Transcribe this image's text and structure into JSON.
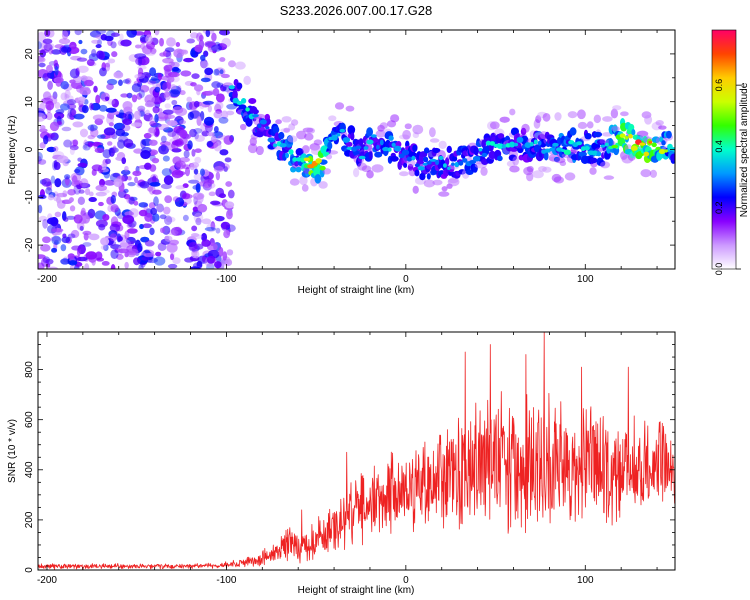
{
  "title": "S233.2026.007.00.17.G28",
  "chart_data": [
    {
      "type": "heatmap",
      "xlabel": "Height of straight line (km)",
      "ylabel": "Frequency (Hz)",
      "xlim": [
        -205,
        150
      ],
      "ylim": [
        -25,
        25
      ],
      "xticks": [
        -200,
        -100,
        0,
        100
      ],
      "xtick_labels": [
        "-200",
        "-100",
        "0",
        "100"
      ],
      "yticks": [
        -20,
        -10,
        0,
        10,
        20
      ],
      "ytick_labels": [
        "-20",
        "-10",
        "0",
        "10",
        "20"
      ],
      "colorbar": {
        "label": "Normalized spectral amplitude",
        "range": [
          0.0,
          0.78
        ],
        "ticks": [
          0.0,
          0.2,
          0.4,
          0.6
        ],
        "tick_labels": [
          "0.0",
          "0.2",
          "0.4",
          "0.6"
        ],
        "colormap": [
          "#ffffff",
          "#cc99ff",
          "#8800ff",
          "#0000ff",
          "#0099ff",
          "#00ffcc",
          "#33ff00",
          "#ccff00",
          "#ffcc00",
          "#ff4400",
          "#ff0066"
        ]
      },
      "noise_region_x": [
        -205,
        -97
      ],
      "ridge": {
        "x": [
          -97,
          -90,
          -82,
          -75,
          -68,
          -60,
          -52,
          -46,
          -42,
          -38,
          -30,
          -24,
          -18,
          -12,
          -8,
          -4,
          0,
          10,
          20,
          35,
          50,
          65,
          80,
          95,
          110,
          122,
          132,
          140,
          150
        ],
        "freq": [
          12,
          10,
          6,
          3,
          0,
          -2,
          -3,
          -4,
          3,
          4,
          1,
          -1,
          2,
          0,
          1,
          -1,
          -1,
          -3,
          -3,
          -2,
          1,
          1,
          0,
          1,
          0,
          3,
          0,
          1,
          0
        ],
        "amplitude": [
          0.35,
          0.4,
          0.35,
          0.35,
          0.4,
          0.45,
          0.7,
          0.6,
          0.4,
          0.4,
          0.35,
          0.35,
          0.4,
          0.35,
          0.45,
          0.35,
          0.35,
          0.35,
          0.35,
          0.35,
          0.4,
          0.35,
          0.4,
          0.45,
          0.4,
          0.65,
          0.75,
          0.6,
          0.4
        ]
      }
    },
    {
      "type": "line",
      "xlabel": "Height of straight line (km)",
      "ylabel": "SNR (10 * v/v)",
      "xlim": [
        -205,
        150
      ],
      "ylim": [
        0,
        950
      ],
      "xticks": [
        -200,
        -100,
        0,
        100
      ],
      "xtick_labels": [
        "-200",
        "-100",
        "0",
        "100"
      ],
      "yticks": [
        0,
        200,
        400,
        600,
        800
      ],
      "ytick_labels": [
        "0",
        "200",
        "400",
        "600",
        "800"
      ],
      "color": "#ee2222",
      "envelope": {
        "x": [
          -205,
          -120,
          -100,
          -85,
          -75,
          -65,
          -58,
          -50,
          -40,
          -30,
          -20,
          -10,
          0,
          10,
          20,
          30,
          40,
          50,
          60,
          70,
          80,
          90,
          100,
          110,
          120,
          130,
          140,
          150
        ],
        "median": [
          15,
          15,
          20,
          35,
          60,
          110,
          90,
          120,
          170,
          230,
          260,
          300,
          330,
          350,
          380,
          400,
          420,
          430,
          420,
          440,
          430,
          420,
          420,
          400,
          410,
          400,
          410,
          400
        ],
        "spread": [
          12,
          12,
          15,
          25,
          45,
          95,
          75,
          90,
          140,
          150,
          170,
          180,
          190,
          220,
          240,
          260,
          280,
          320,
          300,
          340,
          300,
          290,
          280,
          260,
          240,
          220,
          210,
          180
        ]
      },
      "peaks": [
        {
          "x": -58,
          "y": 240
        },
        {
          "x": -33,
          "y": 470
        },
        {
          "x": 33,
          "y": 870
        },
        {
          "x": 47,
          "y": 900
        },
        {
          "x": 67,
          "y": 860
        },
        {
          "x": 77,
          "y": 950
        },
        {
          "x": 98,
          "y": 810
        },
        {
          "x": 124,
          "y": 810
        }
      ]
    }
  ]
}
